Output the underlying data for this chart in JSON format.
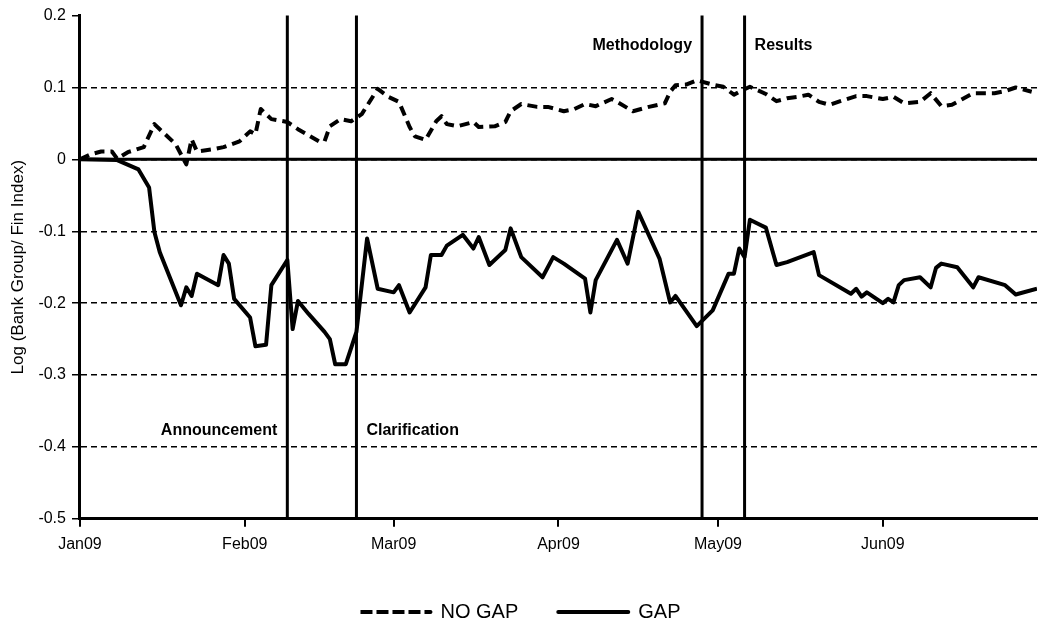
{
  "chart_data": {
    "type": "line",
    "ylabel": "Log (Bank Group/ Fin Index)",
    "xlim": [
      "2009-01-01",
      "2009-06-30"
    ],
    "xticks": [
      {
        "value": "2009-01-01",
        "label": "Jan09"
      },
      {
        "value": "2009-02-01",
        "label": "Feb09"
      },
      {
        "value": "2009-03-01",
        "label": "Mar09"
      },
      {
        "value": "2009-04-01",
        "label": "Apr09"
      },
      {
        "value": "2009-05-01",
        "label": "May09"
      },
      {
        "value": "2009-06-01",
        "label": "Jun09"
      }
    ],
    "ylim": [
      -0.5,
      0.2
    ],
    "yticks": [
      -0.5,
      -0.4,
      -0.3,
      -0.2,
      -0.1,
      0,
      0.1,
      0.2
    ],
    "grid": "y",
    "legend": "bottom",
    "marker": "none",
    "series": [
      {
        "name": "NO GAP",
        "color": "#000000",
        "line_style": "dashed",
        "x": [
          "2009-01-01",
          "2009-01-03",
          "2009-01-05",
          "2009-01-07",
          "2009-01-08",
          "2009-01-10",
          "2009-01-13",
          "2009-01-15",
          "2009-01-17",
          "2009-01-19",
          "2009-01-21",
          "2009-01-22",
          "2009-01-23",
          "2009-01-26",
          "2009-01-28",
          "2009-01-31",
          "2009-02-02",
          "2009-02-03",
          "2009-02-04",
          "2009-02-06",
          "2009-02-09",
          "2009-02-11",
          "2009-02-15",
          "2009-02-16",
          "2009-02-17",
          "2009-02-19",
          "2009-02-21",
          "2009-02-23",
          "2009-02-26",
          "2009-02-28",
          "2009-03-02",
          "2009-03-04",
          "2009-03-05",
          "2009-03-07",
          "2009-03-09",
          "2009-03-10",
          "2009-03-11",
          "2009-03-13",
          "2009-03-16",
          "2009-03-17",
          "2009-03-20",
          "2009-03-22",
          "2009-03-23",
          "2009-03-25",
          "2009-03-28",
          "2009-03-30",
          "2009-04-02",
          "2009-04-04",
          "2009-04-06",
          "2009-04-08",
          "2009-04-11",
          "2009-04-12",
          "2009-04-15",
          "2009-04-18",
          "2009-04-21",
          "2009-04-22",
          "2009-04-23",
          "2009-04-25",
          "2009-04-27",
          "2009-04-30",
          "2009-05-02",
          "2009-05-04",
          "2009-05-05",
          "2009-05-07",
          "2009-05-10",
          "2009-05-12",
          "2009-05-14",
          "2009-05-16",
          "2009-05-18",
          "2009-05-20",
          "2009-05-22",
          "2009-05-24",
          "2009-05-27",
          "2009-05-29",
          "2009-06-01",
          "2009-06-03",
          "2009-06-05",
          "2009-06-08",
          "2009-06-10",
          "2009-06-12",
          "2009-06-14",
          "2009-06-16",
          "2009-06-18",
          "2009-06-22",
          "2009-06-24",
          "2009-06-26",
          "2009-06-29"
        ],
        "values": [
          0,
          0.007,
          0.011,
          0.011,
          0.001,
          0.01,
          0.017,
          0.049,
          0.035,
          0.021,
          -0.007,
          0.028,
          0.011,
          0.014,
          0.017,
          0.025,
          0.039,
          0.035,
          0.07,
          0.056,
          0.052,
          0.042,
          0.025,
          0.025,
          0.046,
          0.056,
          0.053,
          0.063,
          0.098,
          0.087,
          0.08,
          0.045,
          0.032,
          0.027,
          0.053,
          0.06,
          0.049,
          0.046,
          0.052,
          0.045,
          0.046,
          0.052,
          0.067,
          0.077,
          0.073,
          0.073,
          0.067,
          0.07,
          0.077,
          0.074,
          0.084,
          0.08,
          0.067,
          0.073,
          0.078,
          0.094,
          0.103,
          0.104,
          0.11,
          0.104,
          0.101,
          0.09,
          0.094,
          0.101,
          0.091,
          0.081,
          0.085,
          0.087,
          0.09,
          0.08,
          0.076,
          0.081,
          0.088,
          0.088,
          0.084,
          0.087,
          0.078,
          0.08,
          0.092,
          0.074,
          0.076,
          0.084,
          0.092,
          0.092,
          0.095,
          0.1,
          0.094
        ]
      },
      {
        "name": "GAP",
        "color": "#000000",
        "line_style": "solid",
        "x": [
          "2009-01-01",
          "2009-01-08",
          "2009-01-12",
          "2009-01-14",
          "2009-01-15",
          "2009-01-16",
          "2009-01-20",
          "2009-01-21",
          "2009-01-22",
          "2009-01-23",
          "2009-01-27",
          "2009-01-28",
          "2009-01-29",
          "2009-01-30",
          "2009-02-02",
          "2009-02-03",
          "2009-02-05",
          "2009-02-06",
          "2009-02-09",
          "2009-02-10",
          "2009-02-11",
          "2009-02-13",
          "2009-02-16",
          "2009-02-17",
          "2009-02-18",
          "2009-02-20",
          "2009-02-22",
          "2009-02-24",
          "2009-02-26",
          "2009-03-01",
          "2009-03-02",
          "2009-03-04",
          "2009-03-07",
          "2009-03-08",
          "2009-03-10",
          "2009-03-11",
          "2009-03-14",
          "2009-03-16",
          "2009-03-17",
          "2009-03-19",
          "2009-03-22",
          "2009-03-23",
          "2009-03-25",
          "2009-03-29",
          "2009-03-31",
          "2009-04-02",
          "2009-04-06",
          "2009-04-07",
          "2009-04-08",
          "2009-04-12",
          "2009-04-14",
          "2009-04-16",
          "2009-04-20",
          "2009-04-22",
          "2009-04-23",
          "2009-04-27",
          "2009-04-30",
          "2009-05-03",
          "2009-05-04",
          "2009-05-05",
          "2009-05-06",
          "2009-05-07",
          "2009-05-10",
          "2009-05-12",
          "2009-05-14",
          "2009-05-19",
          "2009-05-20",
          "2009-05-26",
          "2009-05-27",
          "2009-05-28",
          "2009-05-29",
          "2009-06-01",
          "2009-06-02",
          "2009-06-03",
          "2009-06-04",
          "2009-06-05",
          "2009-06-08",
          "2009-06-10",
          "2009-06-11",
          "2009-06-12",
          "2009-06-15",
          "2009-06-18",
          "2009-06-19",
          "2009-06-24",
          "2009-06-26",
          "2009-06-30"
        ],
        "values": [
          0,
          -0.001,
          -0.014,
          -0.039,
          -0.101,
          -0.129,
          -0.203,
          -0.178,
          -0.19,
          -0.159,
          -0.175,
          -0.133,
          -0.145,
          -0.194,
          -0.22,
          -0.26,
          -0.258,
          -0.175,
          -0.14,
          -0.236,
          -0.197,
          -0.215,
          -0.24,
          -0.25,
          -0.285,
          -0.285,
          -0.24,
          -0.11,
          -0.18,
          -0.185,
          -0.175,
          -0.213,
          -0.178,
          -0.133,
          -0.133,
          -0.12,
          -0.105,
          -0.124,
          -0.108,
          -0.147,
          -0.126,
          -0.096,
          -0.136,
          -0.164,
          -0.136,
          -0.145,
          -0.166,
          -0.213,
          -0.168,
          -0.112,
          -0.145,
          -0.073,
          -0.138,
          -0.199,
          -0.19,
          -0.232,
          -0.21,
          -0.159,
          -0.159,
          -0.124,
          -0.136,
          -0.084,
          -0.095,
          -0.147,
          -0.143,
          -0.129,
          -0.161,
          -0.187,
          -0.18,
          -0.191,
          -0.185,
          -0.2,
          -0.194,
          -0.199,
          -0.175,
          -0.168,
          -0.164,
          -0.178,
          -0.151,
          -0.145,
          -0.15,
          -0.178,
          -0.164,
          -0.175,
          -0.188,
          -0.18
        ]
      }
    ],
    "ref_lines": [
      {
        "axis": "y",
        "value": 0,
        "color": "#000000",
        "line_style": "solid"
      },
      {
        "axis": "x",
        "value": "2009-02-09",
        "label": "Announcement",
        "color": "#000000",
        "line_style": "solid"
      },
      {
        "axis": "x",
        "value": "2009-02-22",
        "label": "Clarification",
        "color": "#000000",
        "line_style": "solid"
      },
      {
        "axis": "x",
        "value": "2009-04-28",
        "label": "Methodology",
        "color": "#000000",
        "line_style": "solid"
      },
      {
        "axis": "x",
        "value": "2009-05-06",
        "label": "Results",
        "color": "#000000",
        "line_style": "solid"
      }
    ]
  }
}
